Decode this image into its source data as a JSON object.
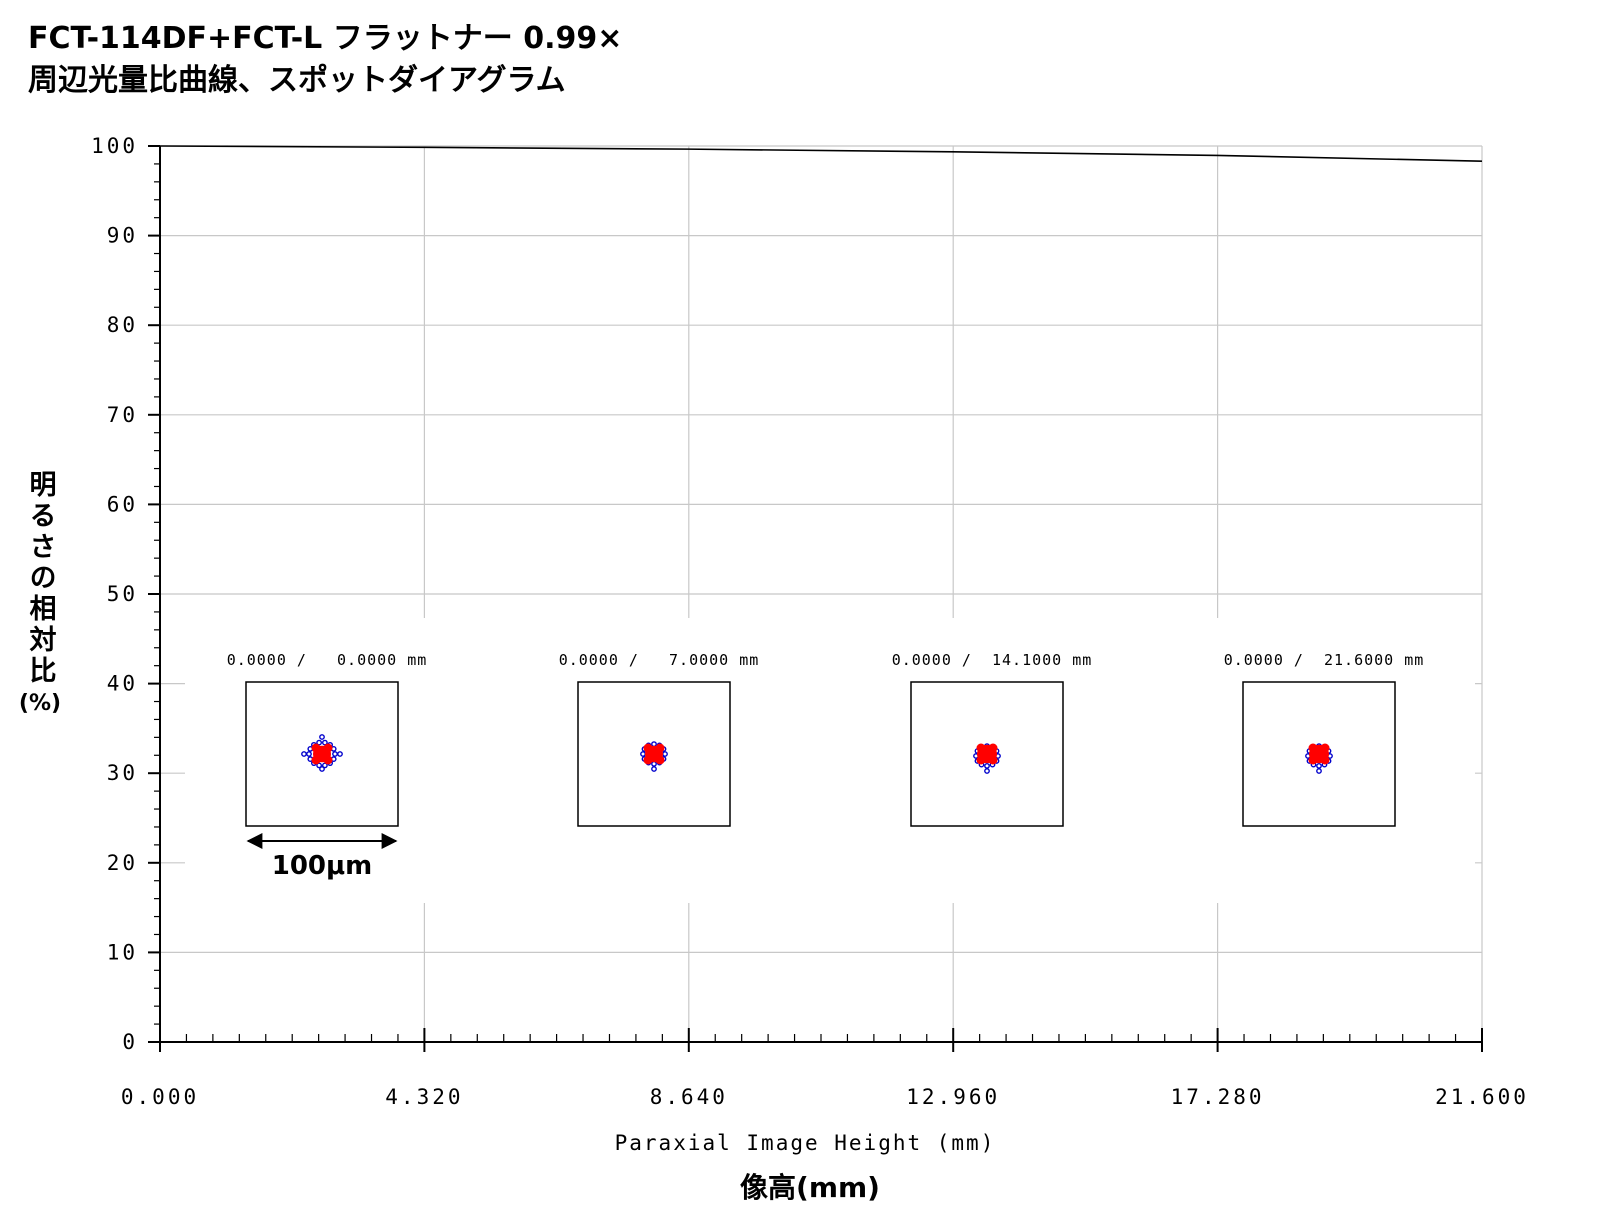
{
  "title": {
    "line1": "FCT-114DF+FCT-L フラットナー 0.99×",
    "line2": "周辺光量比曲線、スポットダイアグラム"
  },
  "chart_data": {
    "type": "line",
    "xlabel": "Paraxial Image Height (mm)",
    "xlabel_jp": "像高(mm)",
    "ylabel_jp": "明るさの相対比",
    "ylabel_unit": "(%)",
    "xlim": [
      0,
      21.6
    ],
    "ylim": [
      0,
      100
    ],
    "x_ticks": [
      "0.000",
      "4.320",
      "8.640",
      "12.960",
      "17.280",
      "21.600"
    ],
    "y_ticks": [
      "0",
      "10",
      "20",
      "30",
      "40",
      "50",
      "60",
      "70",
      "80",
      "90",
      "100"
    ],
    "grid": true,
    "series": [
      {
        "x": [
          0,
          4.32,
          8.64,
          12.96,
          17.28,
          21.6
        ],
        "y": [
          100,
          99.85,
          99.65,
          99.35,
          98.95,
          98.3
        ]
      }
    ],
    "spot_diagrams": {
      "scale_label": "100μm",
      "colors": {
        "primary": "#ff0000",
        "secondary": "#0000cc"
      },
      "items": [
        {
          "label": "0.0000 /   0.0000 mm"
        },
        {
          "label": "0.0000 /   7.0000 mm"
        },
        {
          "label": "0.0000 /  14.1000 mm"
        },
        {
          "label": "0.0000 /  21.6000 mm"
        }
      ]
    }
  }
}
